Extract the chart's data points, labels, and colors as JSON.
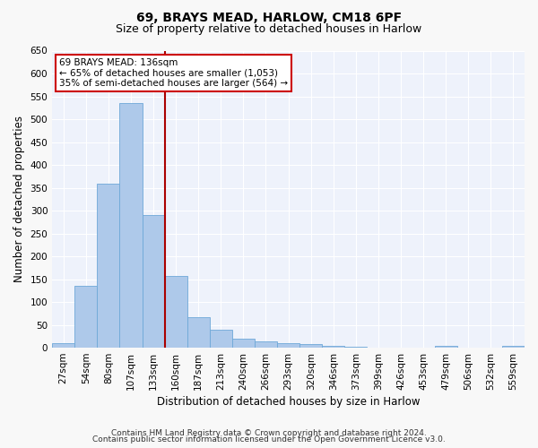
{
  "title1": "69, BRAYS MEAD, HARLOW, CM18 6PF",
  "title2": "Size of property relative to detached houses in Harlow",
  "xlabel": "Distribution of detached houses by size in Harlow",
  "ylabel": "Number of detached properties",
  "footnote1": "Contains HM Land Registry data © Crown copyright and database right 2024.",
  "footnote2": "Contains public sector information licensed under the Open Government Licence v3.0.",
  "bar_labels": [
    "27sqm",
    "54sqm",
    "80sqm",
    "107sqm",
    "133sqm",
    "160sqm",
    "187sqm",
    "213sqm",
    "240sqm",
    "266sqm",
    "293sqm",
    "320sqm",
    "346sqm",
    "373sqm",
    "399sqm",
    "426sqm",
    "453sqm",
    "479sqm",
    "506sqm",
    "532sqm",
    "559sqm"
  ],
  "bar_values": [
    10,
    135,
    358,
    535,
    290,
    157,
    67,
    40,
    20,
    14,
    10,
    8,
    4,
    2,
    1,
    0,
    0,
    5,
    0,
    0,
    5
  ],
  "bar_color": "#aec9ea",
  "bar_edgecolor": "#6ea8d8",
  "vline_color": "#aa0000",
  "vline_position": 4.5,
  "annotation_title": "69 BRAYS MEAD: 136sqm",
  "annotation_line1": "← 65% of detached houses are smaller (1,053)",
  "annotation_line2": "35% of semi-detached houses are larger (564) →",
  "annotation_box_color": "#ffffff",
  "annotation_box_edgecolor": "#cc0000",
  "ylim": [
    0,
    650
  ],
  "yticks": [
    0,
    50,
    100,
    150,
    200,
    250,
    300,
    350,
    400,
    450,
    500,
    550,
    600,
    650
  ],
  "background_color": "#eef2fb",
  "grid_color": "#ffffff",
  "title_fontsize": 10,
  "subtitle_fontsize": 9,
  "axis_label_fontsize": 8.5,
  "tick_fontsize": 7.5,
  "footnote_fontsize": 6.5
}
